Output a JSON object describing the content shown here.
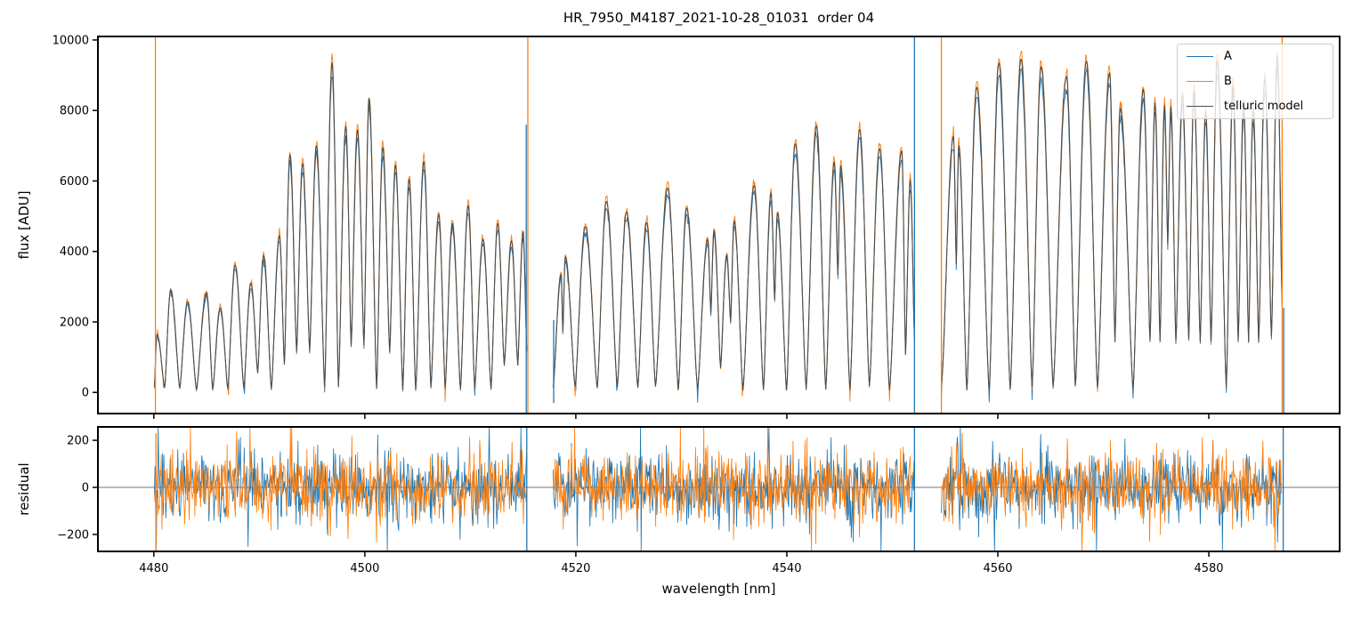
{
  "chart_data": {
    "type": "line",
    "title": "HR_7950_M4187_2021-10-28_01031  order 04",
    "xlabel": "wavelength [nm]",
    "xlim": [
      4474.7,
      4592.4
    ],
    "xticks": [
      4480,
      4500,
      4520,
      4540,
      4560,
      4580
    ],
    "panels": [
      {
        "id": "flux",
        "ylabel": "flux [ADU]",
        "ylim": [
          -600,
          10100
        ],
        "yticks": [
          0,
          2000,
          4000,
          6000,
          8000,
          10000
        ]
      },
      {
        "id": "residual",
        "ylabel": "residual",
        "ylim": [
          -272,
          257
        ],
        "yticks": [
          -200,
          0,
          200
        ],
        "zero_line": true
      }
    ],
    "legend": {
      "position": "upper right",
      "entries": [
        {
          "label": "A",
          "color": "#1f77b4"
        },
        {
          "label": "B",
          "color": "#ff7f0e"
        },
        {
          "label": "telluric model",
          "color": "#4d4d4d"
        }
      ]
    },
    "segments": [
      {
        "range": [
          4480.05,
          4515.35
        ],
        "peaks": [
          [
            4480.3,
            1650
          ],
          [
            4481.6,
            2900
          ],
          [
            4483.2,
            2570
          ],
          [
            4485.0,
            2830
          ],
          [
            4486.3,
            2400
          ],
          [
            4487.7,
            3620
          ],
          [
            4489.2,
            3100
          ],
          [
            4490.4,
            3900
          ],
          [
            4491.9,
            4450
          ],
          [
            4492.9,
            6750
          ],
          [
            4494.1,
            6500
          ],
          [
            4495.4,
            7000
          ],
          [
            4496.9,
            9350
          ],
          [
            4498.2,
            7550
          ],
          [
            4499.3,
            7450
          ],
          [
            4500.4,
            8350
          ],
          [
            4501.7,
            6950
          ],
          [
            4502.9,
            6450
          ],
          [
            4504.2,
            6050
          ],
          [
            4505.6,
            6550
          ],
          [
            4507.0,
            5050
          ],
          [
            4508.3,
            4800
          ],
          [
            4509.8,
            5300
          ],
          [
            4511.2,
            4350
          ],
          [
            4512.6,
            4800
          ],
          [
            4513.9,
            4300
          ],
          [
            4515.0,
            4550
          ]
        ],
        "end_flux": 1200
      },
      {
        "range": [
          4517.85,
          4552.1
        ],
        "peaks": [
          [
            4518.6,
            3350
          ],
          [
            4519.0,
            3850
          ],
          [
            4520.9,
            4700
          ],
          [
            4522.9,
            5420
          ],
          [
            4524.8,
            5120
          ],
          [
            4526.7,
            4820
          ],
          [
            4528.7,
            5800
          ],
          [
            4530.5,
            5230
          ],
          [
            4532.5,
            4350
          ],
          [
            4533.1,
            4600
          ],
          [
            4534.3,
            3900
          ],
          [
            4535.0,
            4870
          ],
          [
            4536.9,
            5870
          ],
          [
            4538.5,
            5660
          ],
          [
            4539.1,
            5100
          ],
          [
            4540.8,
            7060
          ],
          [
            4542.8,
            7560
          ],
          [
            4544.5,
            6540
          ],
          [
            4545.1,
            6430
          ],
          [
            4546.9,
            7460
          ],
          [
            4548.8,
            6920
          ],
          [
            4550.9,
            6860
          ],
          [
            4551.7,
            6040
          ]
        ],
        "end_flux": 1500
      },
      {
        "range": [
          4554.65,
          4586.95
        ],
        "peaks": [
          [
            4555.8,
            7260
          ],
          [
            4556.3,
            7000
          ],
          [
            4558.0,
            8660
          ],
          [
            4560.1,
            9350
          ],
          [
            4562.2,
            9460
          ],
          [
            4564.1,
            9240
          ],
          [
            4566.5,
            8970
          ],
          [
            4568.4,
            9400
          ],
          [
            4570.6,
            9070
          ],
          [
            4571.6,
            8060
          ],
          [
            4573.8,
            8600
          ],
          [
            4574.9,
            8210
          ],
          [
            4575.8,
            8140
          ],
          [
            4576.4,
            8100
          ],
          [
            4577.5,
            8420
          ],
          [
            4578.6,
            8560
          ],
          [
            4579.7,
            7960
          ],
          [
            4580.8,
            9400
          ],
          [
            4582.3,
            8710
          ],
          [
            4583.3,
            8200
          ],
          [
            4584.2,
            8020
          ],
          [
            4585.3,
            8900
          ],
          [
            4586.5,
            9550
          ]
        ],
        "end_flux": 2500
      }
    ],
    "edge_spikes_flux": [
      {
        "wl": 4480.15,
        "series": "B",
        "from": -600,
        "to": 10100
      },
      {
        "wl": 4515.3,
        "series": "A",
        "from": -600,
        "to": 7600
      },
      {
        "wl": 4515.45,
        "series": "B",
        "from": -600,
        "to": 10100
      },
      {
        "wl": 4517.9,
        "series": "A",
        "from": -300,
        "to": 2050
      },
      {
        "wl": 4552.1,
        "series": "A",
        "from": -600,
        "to": 10100
      },
      {
        "wl": 4554.65,
        "series": "B",
        "from": -600,
        "to": 10100
      },
      {
        "wl": 4586.95,
        "series": "B",
        "from": -600,
        "to": 10100
      },
      {
        "wl": 4587.1,
        "series": "A",
        "from": -600,
        "to": 2400
      }
    ],
    "edge_spikes_residual": [
      {
        "wl": 4480.2,
        "series": "B",
        "from": -272,
        "to": 230
      },
      {
        "wl": 4515.35,
        "series": "A",
        "from": -272,
        "to": 257
      },
      {
        "wl": 4552.1,
        "series": "A",
        "from": -272,
        "to": 257
      },
      {
        "wl": 4587.05,
        "series": "A",
        "from": -272,
        "to": 257
      }
    ],
    "series_noise": {
      "A": {
        "scale": 0.967,
        "sigma_base": 25,
        "sigma_prop": 0.006,
        "valley_spike_prob": 0.18
      },
      "B": {
        "scale": 1.02,
        "sigma_base": 25,
        "sigma_prop": 0.006,
        "valley_spike_prob": 0.12
      }
    },
    "residual_noise": {
      "sigma": 72,
      "step": 0.06,
      "outlier_prob": 0.035,
      "outlier_scale": 2.6
    }
  }
}
